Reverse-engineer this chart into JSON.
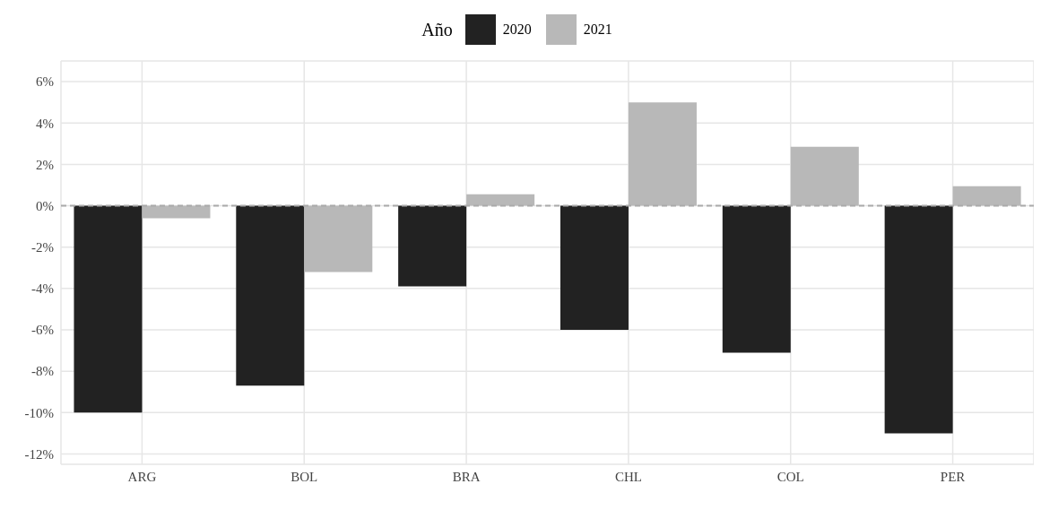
{
  "chart_data": {
    "type": "bar",
    "legend_title": "Año",
    "legend": "top",
    "grid": true,
    "categories": [
      "ARG",
      "BOL",
      "BRA",
      "CHL",
      "COL",
      "PER"
    ],
    "series": [
      {
        "name": "2020",
        "color": "#222222",
        "values": [
          -10,
          -8.7,
          -3.9,
          -6.0,
          -7.1,
          -11.0
        ]
      },
      {
        "name": "2021",
        "color": "#b8b8b8",
        "values": [
          -0.6,
          -3.2,
          0.55,
          5.0,
          2.85,
          0.94
        ]
      }
    ],
    "ylim": [
      -12.5,
      7
    ],
    "yticks": [
      {
        "value": -12,
        "label": "-12%"
      },
      {
        "value": -10,
        "label": "-10%"
      },
      {
        "value": -8,
        "label": "-8%"
      },
      {
        "value": -6,
        "label": "-6%"
      },
      {
        "value": -4,
        "label": "-4%"
      },
      {
        "value": -2,
        "label": "-2%"
      },
      {
        "value": 0,
        "label": "0%"
      },
      {
        "value": 2,
        "label": "2%"
      },
      {
        "value": 4,
        "label": "4%"
      },
      {
        "value": 6,
        "label": "6%"
      }
    ],
    "ref_lines": [
      {
        "axis": "y",
        "value": 0,
        "color": "#aaaaaa",
        "line_style": "dashed"
      }
    ]
  }
}
